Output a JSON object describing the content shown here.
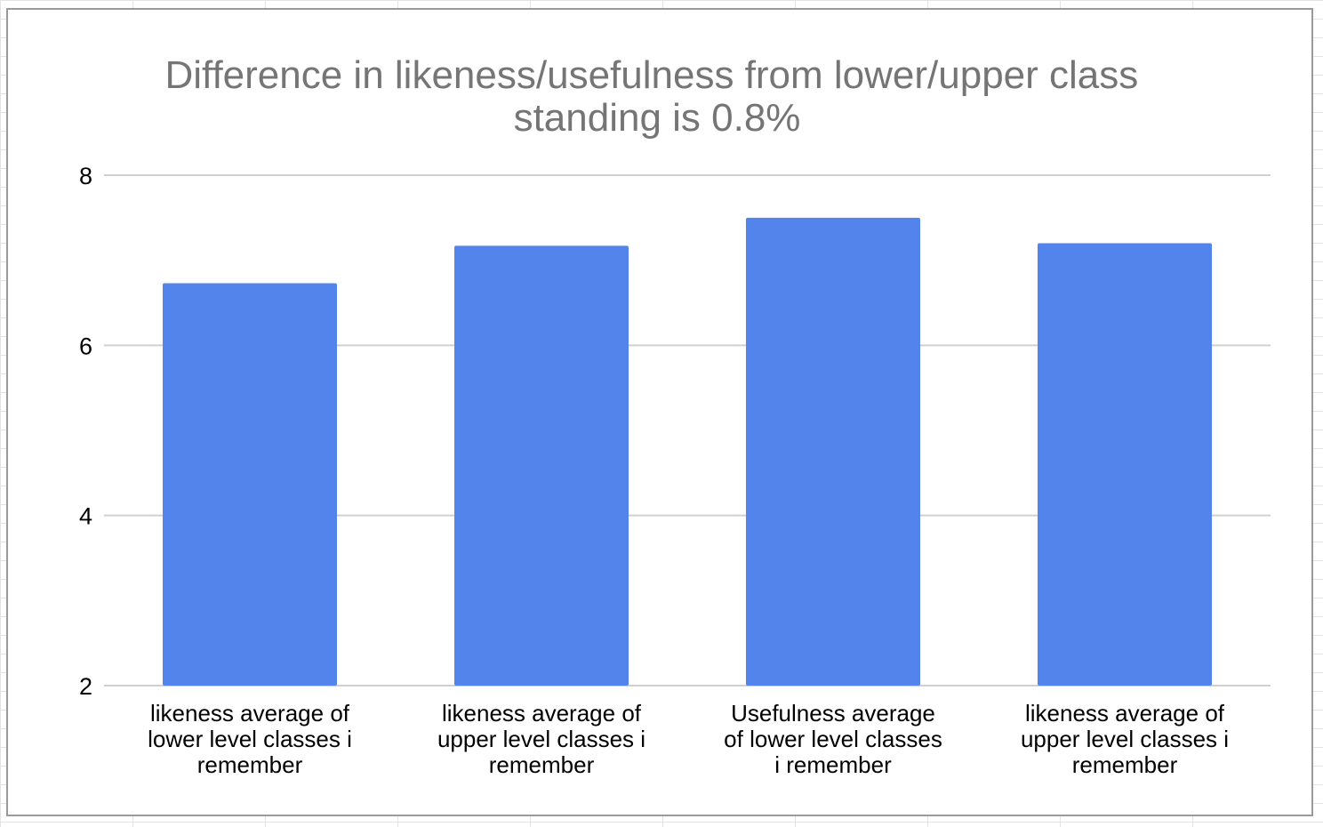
{
  "chart_data": {
    "type": "bar",
    "title_lines": [
      "Difference in likeness/usefulness from lower/upper class",
      "standing is 0.8%"
    ],
    "categories": [
      [
        "likeness average of",
        "lower level classes i",
        "remember"
      ],
      [
        "likeness average of",
        "upper level classes i",
        "remember"
      ],
      [
        "Usefulness average",
        "of lower level classes",
        "i remember"
      ],
      [
        "likeness average of",
        "upper level classes i",
        "remember"
      ]
    ],
    "values": [
      6.73,
      7.17,
      7.5,
      7.2
    ],
    "ylim": [
      2,
      8
    ],
    "yticks": [
      "2",
      "4",
      "6",
      "8"
    ],
    "grid": true,
    "legend": "none",
    "bar_color": "#5384ec",
    "grid_color": "#d0d0d0"
  }
}
